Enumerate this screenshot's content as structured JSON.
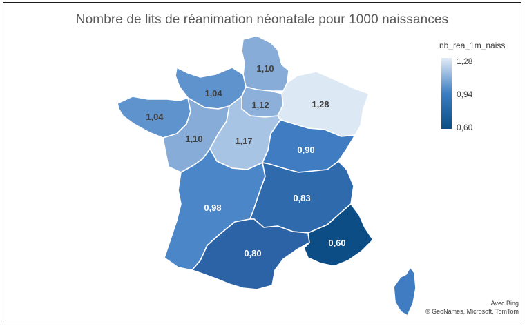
{
  "title": "Nombre de lits de réanimation néonatale pour 1000 naissances",
  "legend": {
    "title": "nb_rea_1m_naiss",
    "max": "1,28",
    "mid": "0,94",
    "min": "0,60",
    "colors": [
      "#e3ecf7",
      "#3c7ec3",
      "#0b4d84"
    ]
  },
  "attribution": {
    "line1": "Avec Bing",
    "line2": "© GeoNames, Microsoft, TomTom"
  },
  "regions": [
    {
      "key": "hauts-de-france",
      "label": "1,10",
      "value": 1.1,
      "color": "#86acd7"
    },
    {
      "key": "normandie",
      "label": "1,04",
      "value": 1.04,
      "color": "#5f93cd"
    },
    {
      "key": "bretagne",
      "label": "1,04",
      "value": 1.04,
      "color": "#5f93cd"
    },
    {
      "key": "ile-de-france",
      "label": "1,12",
      "value": 1.12,
      "color": "#8cb0da"
    },
    {
      "key": "grand-est",
      "label": "1,28",
      "value": 1.28,
      "color": "#dde8f5"
    },
    {
      "key": "pays-de-la-loire",
      "label": "1,10",
      "value": 1.1,
      "color": "#86acd7"
    },
    {
      "key": "centre-val-de-loire",
      "label": "1,17",
      "value": 1.17,
      "color": "#a8c4e5"
    },
    {
      "key": "bourgogne-franche-comte",
      "label": "0,90",
      "value": 0.9,
      "color": "#3f7cc2"
    },
    {
      "key": "nouvelle-aquitaine",
      "label": "0,98",
      "value": 0.98,
      "color": "#4a86c8"
    },
    {
      "key": "auvergne-rhone-alpes",
      "label": "0,83",
      "value": 0.83,
      "color": "#2f6aad"
    },
    {
      "key": "occitanie",
      "label": "0,80",
      "value": 0.8,
      "color": "#2b63a6"
    },
    {
      "key": "provence-alpes-cote-dazur",
      "label": "0,60",
      "value": 0.6,
      "color": "#0b4d84"
    },
    {
      "key": "corse",
      "label": "",
      "value": null,
      "color": "#3f7cc2"
    }
  ]
}
